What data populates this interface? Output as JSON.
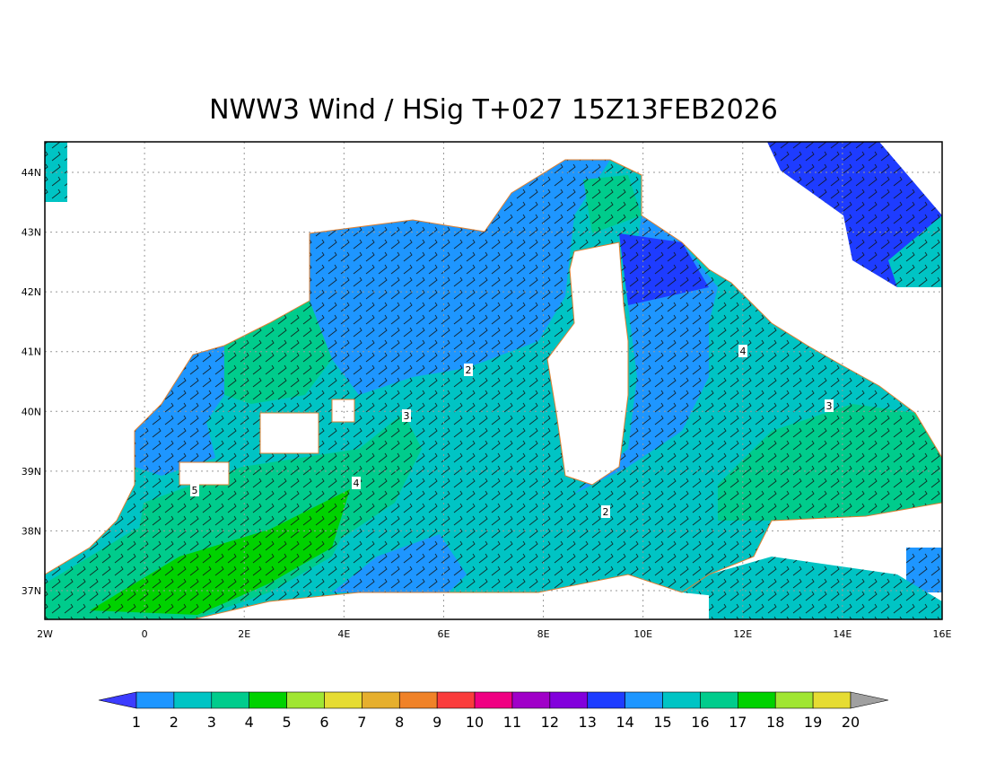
{
  "title": "NWW3 Wind / HSig T+027 15Z13FEB2026",
  "lat_labels": [
    "44N",
    "43N",
    "42N",
    "41N",
    "40N",
    "39N",
    "38N",
    "37N"
  ],
  "lon_labels": [
    "2W",
    "0",
    "2E",
    "4E",
    "6E",
    "8E",
    "10E",
    "12E",
    "14E",
    "16E"
  ],
  "contour_labels": [
    2,
    3,
    4,
    5,
    2,
    4,
    3
  ],
  "colorbar": {
    "labels": [
      1,
      2,
      3,
      4,
      5,
      6,
      7,
      8,
      9,
      10,
      11,
      12,
      13,
      14,
      15,
      16,
      17,
      18,
      19,
      20
    ],
    "colors": [
      "#3c3cff",
      "#1e96ff",
      "#00c4c4",
      "#00cc8c",
      "#00d200",
      "#a0e632",
      "#e6dc32",
      "#e6af2d",
      "#f08228",
      "#fa3c3c",
      "#f00082",
      "#a000c8",
      "#8200dc",
      "#1e3cff",
      "#1e96ff",
      "#00c4c4",
      "#00cc8c",
      "#00d200",
      "#a0e632",
      "#e6dc32",
      "#a0a0a0"
    ]
  }
}
